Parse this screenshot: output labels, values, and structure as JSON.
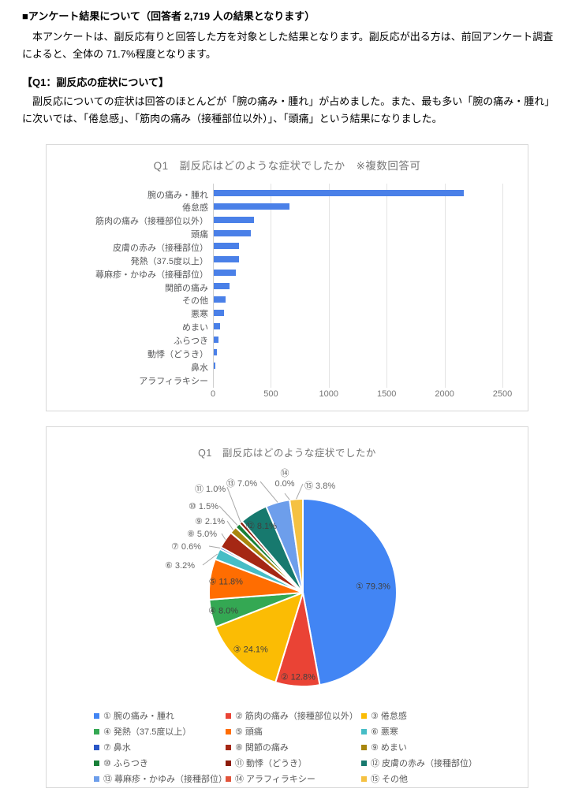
{
  "page": {
    "intro_heading": "■アンケート結果について（回答者 2,719 人の結果となります）",
    "intro_body": "　本アンケートは、副反応有りと回答した方を対象とした結果となります。副反応が出る方は、前回アンケート調査によると、全体の 71.7%程度となります。",
    "q1_heading": "【Q1：副反応の症状について】",
    "q1_body": "　副反応についての症状は回答のほとんどが「腕の痛み・腫れ」が占めました。また、最も多い「腕の痛み・腫れ」に次いでは、「倦怠感」、「筋肉の痛み（接種部位以外）」、「頭痛」という結果になりました。"
  },
  "chart_data": [
    {
      "type": "bar",
      "orientation": "horizontal",
      "title": "Q1　副反応はどのような症状でしたか　※複数回答可",
      "categories": [
        "腕の痛み・腫れ",
        "倦怠感",
        "筋肉の痛み（接種部位以外）",
        "頭痛",
        "皮膚の赤み（接種部位）",
        "発熱（37.5度以上）",
        "蕁麻疹・かゆみ（接種部位）",
        "関節の痛み",
        "その他",
        "悪寒",
        "めまい",
        "ふらつき",
        "動悸（どうき）",
        "鼻水",
        "アラフィラキシー"
      ],
      "values": [
        2156,
        655,
        348,
        321,
        220,
        218,
        190,
        136,
        103,
        87,
        57,
        41,
        27,
        16,
        1
      ],
      "xlim": [
        0,
        2500
      ],
      "xticks": [
        0,
        500,
        1000,
        1500,
        2000,
        2500
      ],
      "grid": true,
      "bar_color": "#4a80e8"
    },
    {
      "type": "pie",
      "title": "Q1　副反応はどのような症状でしたか",
      "legend_position": "bottom",
      "slices": [
        {
          "mark": "①",
          "label": "腕の痛み・腫れ",
          "pct": 79.3,
          "color": "#4285f4",
          "label_pos": "inside"
        },
        {
          "mark": "②",
          "label": "筋肉の痛み（接種部位以外）",
          "pct": 12.8,
          "color": "#ea4335",
          "label_pos": "inside"
        },
        {
          "mark": "③",
          "label": "倦怠感",
          "pct": 24.1,
          "color": "#fbbc04",
          "label_pos": "inside"
        },
        {
          "mark": "④",
          "label": "発熱（37.5度以上）",
          "pct": 8.0,
          "color": "#34a853",
          "label_pos": "inside"
        },
        {
          "mark": "⑤",
          "label": "頭痛",
          "pct": 11.8,
          "color": "#ff6d01",
          "label_pos": "inside"
        },
        {
          "mark": "⑥",
          "label": "悪寒",
          "pct": 3.2,
          "color": "#46bdc6",
          "label_pos": "outside"
        },
        {
          "mark": "⑦",
          "label": "鼻水",
          "pct": 0.6,
          "color": "#2a56c6",
          "label_pos": "outside"
        },
        {
          "mark": "⑧",
          "label": "関節の痛み",
          "pct": 5.0,
          "color": "#a52714",
          "label_pos": "outside"
        },
        {
          "mark": "⑨",
          "label": "めまい",
          "pct": 2.1,
          "color": "#a8860d",
          "label_pos": "outside"
        },
        {
          "mark": "⑩",
          "label": "ふらつき",
          "pct": 1.5,
          "color": "#188038",
          "label_pos": "outside"
        },
        {
          "mark": "⑪",
          "label": "動悸（どうき）",
          "pct": 1.0,
          "color": "#8c1a09",
          "label_pos": "outside"
        },
        {
          "mark": "⑫",
          "label": "皮膚の赤み（接種部位）",
          "pct": 8.1,
          "color": "#17796e",
          "label_pos": "inside"
        },
        {
          "mark": "⑬",
          "label": "蕁麻疹・かゆみ（接種部位）",
          "pct": 7.0,
          "color": "#6d9eeb",
          "label_pos": "outside"
        },
        {
          "mark": "⑭",
          "label": "アラフィラキシー",
          "pct": 0.0,
          "color": "#e2543b",
          "label_pos": "outside"
        },
        {
          "mark": "⑮",
          "label": "その他",
          "pct": 3.8,
          "color": "#f5c142",
          "label_pos": "outside"
        }
      ]
    }
  ]
}
